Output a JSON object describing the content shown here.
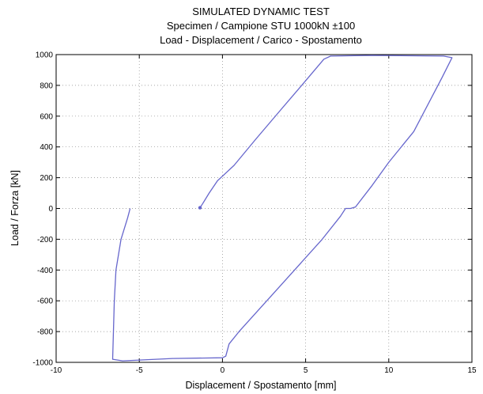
{
  "chart_data": {
    "type": "line",
    "title_lines": [
      "SIMULATED DYNAMIC TEST",
      "Specimen / Campione STU 1000kN ±100",
      "Load - Displacement / Carico - Spostamento"
    ],
    "xlabel": "Displacement / Spostamento [mm]",
    "ylabel": "Load / Forza [kN]",
    "xlim": [
      -10,
      15
    ],
    "ylim": [
      -1000,
      1000
    ],
    "xticks": [
      -10,
      -5,
      0,
      5,
      10,
      15
    ],
    "yticks": [
      -1000,
      -800,
      -600,
      -400,
      -200,
      0,
      200,
      400,
      600,
      800,
      1000
    ],
    "xtick_labels": [
      "-10",
      "-5",
      "0",
      "5",
      "10",
      "15"
    ],
    "ytick_labels": [
      "-1000",
      "-800",
      "-600",
      "-400",
      "-200",
      "0",
      "200",
      "400",
      "600",
      "800",
      "1000"
    ],
    "grid": "dotted",
    "series": [
      {
        "color": "#6666cc",
        "x": [
          -1.35,
          -1.2,
          -0.8,
          -0.3,
          0.0,
          0.7,
          2.0,
          3.5,
          5.0,
          6.1,
          6.5,
          9.0,
          13.3,
          13.8,
          13.2,
          11.5,
          10.0,
          9.0,
          8.0,
          7.7,
          7.4,
          7.1,
          6.0,
          4.5,
          2.5,
          1.0,
          0.4,
          0.2,
          0.0,
          -3.0,
          -6.0,
          -6.6,
          -6.5,
          -6.4,
          -6.1,
          -5.7,
          -5.55
        ],
        "y": [
          5,
          30,
          100,
          180,
          210,
          280,
          450,
          640,
          830,
          970,
          990,
          995,
          990,
          980,
          850,
          500,
          300,
          150,
          10,
          0,
          0,
          -50,
          -200,
          -380,
          -620,
          -800,
          -880,
          -960,
          -970,
          -975,
          -990,
          -980,
          -600,
          -400,
          -200,
          -60,
          0
        ]
      }
    ]
  }
}
